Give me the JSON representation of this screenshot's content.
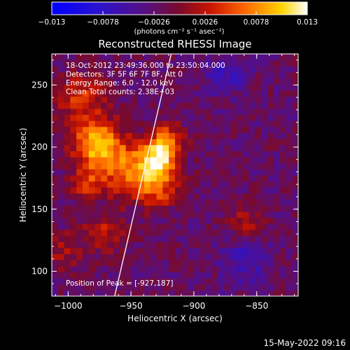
{
  "chart_data": {
    "type": "heatmap",
    "title": "Reconstructed RHESSI Image",
    "xlabel": "Heliocentric X (arcsec)",
    "ylabel": "Heliocentric Y (arcsec)",
    "xlim": [
      -1013,
      -817
    ],
    "ylim": [
      80,
      275
    ],
    "x_ticks": [
      -1000,
      -950,
      -900,
      -850
    ],
    "x_tick_labels": [
      "−1000",
      "−950",
      "−900",
      "−850"
    ],
    "y_ticks": [
      100,
      150,
      200,
      250
    ],
    "y_tick_labels": [
      "100",
      "150",
      "200",
      "250"
    ],
    "colorbar": {
      "min": -0.013,
      "max": 0.013,
      "ticks": [
        -0.013,
        -0.0078,
        -0.0026,
        0.0026,
        0.0078,
        0.013
      ],
      "tick_labels": [
        "−0.013",
        "−0.0078",
        "−0.0026",
        "0.0026",
        "0.0078",
        "0.013"
      ],
      "units": "(photons cm⁻² s⁻¹ asec⁻²)",
      "colormap": "blue-purple-red-orange-yellow-white"
    },
    "annotations": [
      "18-Oct-2012 23:49:36.000 to 23:50:04.000",
      "Detectors: 3F 5F 6F 7F 8F, Att 0",
      "Energy Range: 6.0 - 12.0 keV",
      "Clean      Total counts: 2.38E+03"
    ],
    "peak_label": "Position of Peak = [-927,187]",
    "peak": [
      -927,
      187
    ],
    "limb_line": [
      [
        -963,
        80
      ],
      [
        -918,
        275
      ]
    ],
    "sources": [
      {
        "x": -977,
        "y": 203,
        "sigma": 13,
        "amp": 0.0125
      },
      {
        "x": -929,
        "y": 189,
        "sigma": 10,
        "amp": 0.013
      },
      {
        "x": -953,
        "y": 182,
        "sigma": 15,
        "amp": 0.0085
      },
      {
        "x": -921,
        "y": 206,
        "sigma": 9,
        "amp": 0.008
      },
      {
        "x": -928,
        "y": 167,
        "sigma": 11,
        "amp": 0.007
      },
      {
        "x": -985,
        "y": 172,
        "sigma": 9,
        "amp": 0.006
      },
      {
        "x": -990,
        "y": 240,
        "sigma": 14,
        "amp": 0.006
      },
      {
        "x": -970,
        "y": 132,
        "sigma": 12,
        "amp": 0.0045
      },
      {
        "x": -860,
        "y": 140,
        "sigma": 10,
        "amp": 0.0045
      },
      {
        "x": -1003,
        "y": 115,
        "sigma": 12,
        "amp": 0.0035
      },
      {
        "x": -875,
        "y": 258,
        "sigma": 12,
        "amp": -0.004
      },
      {
        "x": -860,
        "y": 110,
        "sigma": 14,
        "amp": -0.004
      }
    ]
  },
  "footer": {
    "datetime": "15-May-2022 09:16"
  }
}
